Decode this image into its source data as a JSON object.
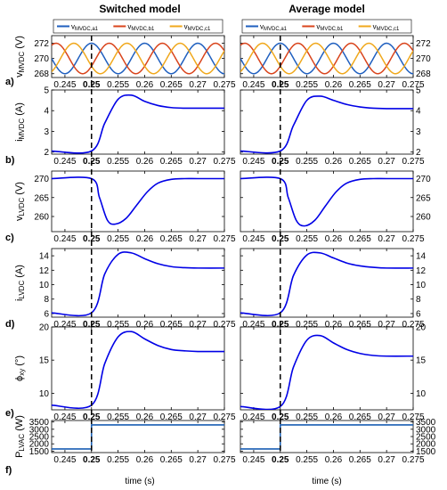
{
  "columns": [
    {
      "title": "Switched model"
    },
    {
      "title": "Average model"
    }
  ],
  "x_ticks": [
    "0.245",
    "0.25",
    "0.255",
    "0.26",
    "0.265",
    "0.27",
    "0.275"
  ],
  "x_label": "time (s)",
  "legend": [
    "v_MVDC,a1",
    "v_MVDC,b1",
    "v_MVDC,c1"
  ],
  "colors": {
    "a1": "#1f5fbf",
    "b1": "#d9441c",
    "c1": "#f0a81c",
    "trace": "#0000e6",
    "power": "#1a5fb4",
    "marker": "#000000"
  },
  "chart_data": [
    {
      "row": "a)",
      "type": "line",
      "ylabel": "v_MVDC (V)",
      "xlim": [
        0.2425,
        0.275
      ],
      "ylim": [
        267.5,
        273
      ],
      "yticks": [
        268,
        270,
        272
      ],
      "series": [
        {
          "name": "v_MVDC,a1",
          "mean": 270,
          "amplitude": 2,
          "period": 0.01,
          "phase_deg": 90
        },
        {
          "name": "v_MVDC,b1",
          "mean": 270,
          "amplitude": 2,
          "period": 0.01,
          "phase_deg": -30
        },
        {
          "name": "v_MVDC,c1",
          "mean": 270,
          "amplitude": 2,
          "period": 0.01,
          "phase_deg": 210
        }
      ]
    },
    {
      "row": "b)",
      "type": "line",
      "ylabel": "i_MVDC (A)",
      "xlim": [
        0.2425,
        0.275
      ],
      "ylim": [
        1.9,
        5
      ],
      "yticks": [
        2,
        3,
        4,
        5
      ],
      "step_time": 0.25,
      "switched": {
        "x": [
          0.2425,
          0.25,
          0.2525,
          0.255,
          0.2575,
          0.26,
          0.2625,
          0.265,
          0.2675,
          0.27,
          0.275
        ],
        "y": [
          2.05,
          2.05,
          3.4,
          4.55,
          4.75,
          4.45,
          4.25,
          4.15,
          4.12,
          4.12,
          4.12
        ]
      },
      "average": {
        "x": [
          0.2425,
          0.25,
          0.2525,
          0.255,
          0.2575,
          0.26,
          0.2625,
          0.265,
          0.2675,
          0.27,
          0.275
        ],
        "y": [
          2.05,
          2.05,
          3.3,
          4.5,
          4.7,
          4.5,
          4.3,
          4.18,
          4.12,
          4.1,
          4.1
        ]
      }
    },
    {
      "row": "c)",
      "type": "line",
      "ylabel": "v_LVDC (V)",
      "xlim": [
        0.2425,
        0.275
      ],
      "ylim": [
        256,
        272
      ],
      "yticks": [
        260,
        265,
        270
      ],
      "step_time": 0.25,
      "switched": {
        "x": [
          0.2425,
          0.25,
          0.2515,
          0.253,
          0.2545,
          0.2565,
          0.2585,
          0.2605,
          0.2625,
          0.265,
          0.2675,
          0.27,
          0.275
        ],
        "y": [
          270,
          270,
          265,
          259,
          258,
          259.5,
          263,
          266.5,
          268.8,
          269.8,
          270,
          270,
          270
        ]
      },
      "average": {
        "x": [
          0.2425,
          0.25,
          0.2515,
          0.253,
          0.2545,
          0.2565,
          0.2585,
          0.2605,
          0.2625,
          0.265,
          0.2675,
          0.27,
          0.275
        ],
        "y": [
          270,
          270,
          265,
          259,
          257.5,
          259,
          262.8,
          266.5,
          268.8,
          269.8,
          270,
          270,
          270
        ]
      }
    },
    {
      "row": "d)",
      "type": "line",
      "ylabel": "i_LVDC (A)",
      "xlim": [
        0.2425,
        0.275
      ],
      "ylim": [
        5.5,
        15
      ],
      "yticks": [
        6,
        8,
        10,
        12,
        14
      ],
      "step_time": 0.25,
      "switched": {
        "x": [
          0.2425,
          0.25,
          0.2525,
          0.255,
          0.2575,
          0.26,
          0.2625,
          0.265,
          0.2675,
          0.27,
          0.275
        ],
        "y": [
          6.1,
          6.1,
          11.5,
          14.2,
          14.4,
          13.6,
          12.9,
          12.5,
          12.35,
          12.3,
          12.3
        ]
      },
      "average": {
        "x": [
          0.2425,
          0.25,
          0.2525,
          0.255,
          0.2575,
          0.26,
          0.2625,
          0.265,
          0.2675,
          0.27,
          0.275
        ],
        "y": [
          6.1,
          6.1,
          11.3,
          14.1,
          14.4,
          13.7,
          13.0,
          12.6,
          12.4,
          12.3,
          12.3
        ]
      }
    },
    {
      "row": "e)",
      "type": "line",
      "ylabel": "ϕ_xy (°)",
      "xlim": [
        0.2425,
        0.275
      ],
      "ylim": [
        7.5,
        20
      ],
      "yticks": [
        10,
        15,
        20
      ],
      "step_time": 0.25,
      "switched": {
        "x": [
          0.2425,
          0.25,
          0.2525,
          0.255,
          0.2575,
          0.26,
          0.2625,
          0.265,
          0.2675,
          0.27,
          0.275
        ],
        "y": [
          8.2,
          8.2,
          14.5,
          18.5,
          19.3,
          18.2,
          17.2,
          16.6,
          16.4,
          16.3,
          16.3
        ]
      },
      "average": {
        "x": [
          0.2425,
          0.25,
          0.2525,
          0.255,
          0.2575,
          0.26,
          0.2625,
          0.265,
          0.2675,
          0.27,
          0.275
        ],
        "y": [
          8.0,
          8.0,
          14.0,
          18.0,
          18.7,
          17.6,
          16.6,
          16.0,
          15.7,
          15.6,
          15.6
        ]
      }
    },
    {
      "row": "f)",
      "type": "line",
      "ylabel": "P_LVAC (W)",
      "xlim": [
        0.2425,
        0.275
      ],
      "ylim": [
        1400,
        3600
      ],
      "yticks": [
        1500,
        2000,
        2500,
        3000,
        3500
      ],
      "step_time": 0.25,
      "switched": {
        "x": [
          0.2425,
          0.25,
          0.25,
          0.275
        ],
        "y": [
          1650,
          1650,
          3300,
          3300
        ]
      },
      "average": {
        "x": [
          0.2425,
          0.25,
          0.25,
          0.275
        ],
        "y": [
          1650,
          1650,
          3300,
          3300
        ]
      }
    }
  ]
}
